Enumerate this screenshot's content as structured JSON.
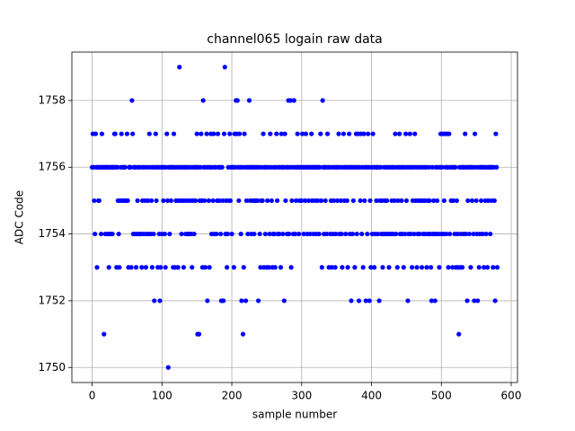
{
  "chart_data": {
    "type": "scatter",
    "title": "channel065 logain raw data",
    "x_label": "sample number",
    "y_label": "ADC Code",
    "xlim": [
      -29,
      609
    ],
    "ylim": [
      1749.55,
      1759.45
    ],
    "xticks": [
      0,
      100,
      200,
      300,
      400,
      500,
      600
    ],
    "yticks": [
      1750,
      1752,
      1754,
      1756,
      1758
    ],
    "grid": true,
    "series": [
      {
        "color": "#0000ff",
        "x": [
          0,
          1,
          2,
          3,
          4,
          5,
          6,
          7,
          8,
          9,
          10,
          11,
          12,
          13,
          14,
          15,
          16,
          17,
          18,
          19,
          20,
          21,
          22,
          23,
          24,
          25,
          26,
          27,
          28,
          29,
          30,
          31,
          32,
          33,
          34,
          35,
          36,
          37,
          38,
          39,
          40,
          41,
          42,
          43,
          44,
          45,
          46,
          47,
          48,
          49,
          50,
          51,
          52,
          53,
          54,
          55,
          56,
          57,
          58,
          59,
          60,
          61,
          62,
          63,
          64,
          65,
          66,
          67,
          68,
          69,
          70,
          71,
          72,
          73,
          74,
          75,
          76,
          77,
          78,
          79,
          80,
          81,
          82,
          83,
          84,
          85,
          86,
          87,
          88,
          89,
          90,
          91,
          92,
          93,
          94,
          95,
          96,
          97,
          98,
          99,
          100,
          101,
          102,
          103,
          104,
          105,
          106,
          107,
          108,
          109,
          110,
          111,
          112,
          113,
          114,
          115,
          116,
          117,
          118,
          119,
          120,
          121,
          122,
          123,
          124,
          125,
          126,
          127,
          128,
          129,
          130,
          131,
          132,
          133,
          134,
          135,
          136,
          137,
          138,
          139,
          140,
          141,
          142,
          143,
          144,
          145,
          146,
          147,
          148,
          149,
          150,
          151,
          152,
          153,
          154,
          155,
          156,
          157,
          158,
          159,
          160,
          161,
          162,
          163,
          164,
          165,
          166,
          167,
          168,
          169,
          170,
          171,
          172,
          173,
          174,
          175,
          176,
          177,
          178,
          179,
          180,
          181,
          182,
          183,
          184,
          185,
          186,
          187,
          188,
          189,
          190,
          191,
          192,
          193,
          194,
          195,
          196,
          197,
          198,
          199,
          200,
          201,
          202,
          203,
          204,
          205,
          206,
          207,
          208,
          209,
          210,
          211,
          212,
          213,
          214,
          215,
          216,
          217,
          218,
          219,
          220,
          221,
          222,
          223,
          224,
          225,
          226,
          227,
          228,
          229,
          230,
          231,
          232,
          233,
          234,
          235,
          236,
          237,
          238,
          239,
          240,
          241,
          242,
          243,
          244,
          245,
          246,
          247,
          248,
          249,
          250,
          251,
          252,
          253,
          254,
          255,
          256,
          257,
          258,
          259,
          260,
          261,
          262,
          263,
          264,
          265,
          266,
          267,
          268,
          269,
          270,
          271,
          272,
          273,
          274,
          275,
          276,
          277,
          278,
          279,
          280,
          281,
          282,
          283,
          284,
          285,
          286,
          287,
          288,
          289,
          290,
          291,
          292,
          293,
          294,
          295,
          296,
          297,
          298,
          299,
          300,
          301,
          302,
          303,
          304,
          305,
          306,
          307,
          308,
          309,
          310,
          311,
          312,
          313,
          314,
          315,
          316,
          317,
          318,
          319,
          320,
          321,
          322,
          323,
          324,
          325,
          326,
          327,
          328,
          329,
          330,
          331,
          332,
          333,
          334,
          335,
          336,
          337,
          338,
          339,
          340,
          341,
          342,
          343,
          344,
          345,
          346,
          347,
          348,
          349,
          350,
          351,
          352,
          353,
          354,
          355,
          356,
          357,
          358,
          359,
          360,
          361,
          362,
          363,
          364,
          365,
          366,
          367,
          368,
          369,
          370,
          371,
          372,
          373,
          374,
          375,
          376,
          377,
          378,
          379,
          380,
          381,
          382,
          383,
          384,
          385,
          386,
          387,
          388,
          389,
          390,
          391,
          392,
          393,
          394,
          395,
          396,
          397,
          398,
          399,
          400,
          401,
          402,
          403,
          404,
          405,
          406,
          407,
          408,
          409,
          410,
          411,
          412,
          413,
          414,
          415,
          416,
          417,
          418,
          419,
          420,
          421,
          422,
          423,
          424,
          425,
          426,
          427,
          428,
          429,
          430,
          431,
          432,
          433,
          434,
          435,
          436,
          437,
          438,
          439,
          440,
          441,
          442,
          443,
          444,
          445,
          446,
          447,
          448,
          449,
          450,
          451,
          452,
          453,
          454,
          455,
          456,
          457,
          458,
          459,
          460,
          461,
          462,
          463,
          464,
          465,
          466,
          467,
          468,
          469,
          470,
          471,
          472,
          473,
          474,
          475,
          476,
          477,
          478,
          479,
          480,
          481,
          482,
          483,
          484,
          485,
          486,
          487,
          488,
          489,
          490,
          491,
          492,
          493,
          494,
          495,
          496,
          497,
          498,
          499,
          500,
          501,
          502,
          503,
          504,
          505,
          506,
          507,
          508,
          509,
          510,
          511,
          512,
          513,
          514,
          515,
          516,
          517,
          518,
          519,
          520,
          521,
          522,
          523,
          524,
          525,
          526,
          527,
          528,
          529,
          530,
          531,
          532,
          533,
          534,
          535,
          536,
          537,
          538,
          539,
          540,
          541,
          542,
          543,
          544,
          545,
          546,
          547,
          548,
          549,
          550,
          551,
          552,
          553,
          554,
          555,
          556,
          557,
          558,
          559,
          560,
          561,
          562,
          563,
          564,
          565,
          566,
          567,
          568,
          569,
          570,
          571,
          572,
          573,
          574,
          575,
          576,
          577,
          578,
          579,
          580
        ],
        "values": [
          1756,
          1757,
          1756,
          1755,
          1754,
          1757,
          1756,
          1753,
          1756,
          1755,
          1755,
          1756,
          1756,
          1754,
          1757,
          1756,
          1756,
          1751,
          1756,
          1754,
          1756,
          1756,
          1754,
          1756,
          1753,
          1754,
          1756,
          1754,
          1756,
          1754,
          1756,
          1756,
          1757,
          1757,
          1756,
          1753,
          1756,
          1755,
          1754,
          1753,
          1755,
          1756,
          1757,
          1755,
          1756,
          1755,
          1756,
          1756,
          1755,
          1755,
          1757,
          1755,
          1753,
          1756,
          1756,
          1756,
          1753,
          1758,
          1757,
          1754,
          1756,
          1754,
          1756,
          1753,
          1754,
          1755,
          1756,
          1754,
          1754,
          1756,
          1754,
          1753,
          1755,
          1756,
          1754,
          1756,
          1755,
          1753,
          1754,
          1756,
          1755,
          1754,
          1757,
          1756,
          1754,
          1755,
          1753,
          1756,
          1754,
          1752,
          1756,
          1757,
          1755,
          1756,
          1753,
          1756,
          1754,
          1752,
          1753,
          1756,
          1754,
          1756,
          1755,
          1756,
          1754,
          1753,
          1756,
          1757,
          1755,
          1750,
          1756,
          1754,
          1756,
          1755,
          1756,
          1756,
          1753,
          1757,
          1756,
          1753,
          1755,
          1756,
          1755,
          1753,
          1756,
          1759,
          1755,
          1756,
          1754,
          1755,
          1756,
          1753,
          1755,
          1756,
          1754,
          1756,
          1755,
          1754,
          1756,
          1754,
          1755,
          1756,
          1754,
          1753,
          1755,
          1756,
          1754,
          1756,
          1755,
          1756,
          1757,
          1751,
          1756,
          1751,
          1755,
          1756,
          1757,
          1755,
          1753,
          1758,
          1756,
          1755,
          1753,
          1756,
          1757,
          1752,
          1756,
          1755,
          1753,
          1756,
          1757,
          1754,
          1756,
          1755,
          1757,
          1754,
          1756,
          1756,
          1754,
          1755,
          1757,
          1756,
          1755,
          1756,
          1754,
          1752,
          1756,
          1755,
          1752,
          1757,
          1759,
          1754,
          1755,
          1753,
          1754,
          1756,
          1755,
          1757,
          1755,
          1756,
          1754,
          1756,
          1756,
          1753,
          1757,
          1756,
          1758,
          1757,
          1758,
          1756,
          1755,
          1757,
          1756,
          1754,
          1752,
          1756,
          1751,
          1753,
          1757,
          1756,
          1752,
          1755,
          1756,
          1754,
          1756,
          1758,
          1755,
          1756,
          1754,
          1756,
          1755,
          1756,
          1754,
          1755,
          1756,
          1755,
          1756,
          1755,
          1752,
          1756,
          1754,
          1753,
          1755,
          1756,
          1755,
          1757,
          1753,
          1756,
          1754,
          1756,
          1753,
          1755,
          1756,
          1753,
          1754,
          1757,
          1756,
          1755,
          1753,
          1754,
          1756,
          1754,
          1753,
          1756,
          1757,
          1755,
          1754,
          1756,
          1754,
          1756,
          1753,
          1757,
          1756,
          1754,
          1756,
          1752,
          1757,
          1755,
          1756,
          1754,
          1756,
          1758,
          1754,
          1756,
          1758,
          1753,
          1755,
          1756,
          1754,
          1758,
          1756,
          1754,
          1755,
          1756,
          1757,
          1756,
          1754,
          1755,
          1756,
          1756,
          1755,
          1757,
          1756,
          1754,
          1756,
          1755,
          1757,
          1756,
          1754,
          1756,
          1755,
          1756,
          1754,
          1756,
          1757,
          1755,
          1756,
          1754,
          1756,
          1755,
          1756,
          1754,
          1756,
          1755,
          1756,
          1754,
          1756,
          1757,
          1755,
          1753,
          1758,
          1756,
          1754,
          1756,
          1755,
          1756,
          1754,
          1757,
          1756,
          1753,
          1756,
          1754,
          1755,
          1753,
          1756,
          1754,
          1755,
          1756,
          1753,
          1754,
          1756,
          1755,
          1756,
          1757,
          1754,
          1756,
          1755,
          1754,
          1753,
          1756,
          1757,
          1755,
          1756,
          1754,
          1756,
          1755,
          1753,
          1756,
          1757,
          1754,
          1756,
          1752,
          1756,
          1754,
          1755,
          1756,
          1753,
          1756,
          1757,
          1754,
          1756,
          1757,
          1752,
          1756,
          1755,
          1757,
          1754,
          1756,
          1753,
          1757,
          1755,
          1756,
          1752,
          1756,
          1754,
          1757,
          1756,
          1752,
          1755,
          1753,
          1756,
          1754,
          1757,
          1756,
          1753,
          1754,
          1756,
          1755,
          1756,
          1754,
          1756,
          1752,
          1755,
          1756,
          1754,
          1755,
          1753,
          1754,
          1756,
          1755,
          1754,
          1756,
          1755,
          1754,
          1756,
          1753,
          1754,
          1756,
          1754,
          1755,
          1756,
          1754,
          1756,
          1755,
          1757,
          1754,
          1756,
          1753,
          1755,
          1756,
          1757,
          1754,
          1756,
          1755,
          1754,
          1756,
          1753,
          1756,
          1754,
          1757,
          1755,
          1756,
          1752,
          1754,
          1756,
          1757,
          1754,
          1756,
          1753,
          1755,
          1756,
          1754,
          1757,
          1755,
          1756,
          1753,
          1754,
          1755,
          1756,
          1754,
          1755,
          1756,
          1753,
          1755,
          1754,
          1756,
          1755,
          1754,
          1756,
          1753,
          1755,
          1754,
          1756,
          1755,
          1754,
          1753,
          1752,
          1756,
          1754,
          1755,
          1754,
          1752,
          1756,
          1754,
          1755,
          1756,
          1754,
          1753,
          1756,
          1757,
          1754,
          1756,
          1757,
          1754,
          1755,
          1757,
          1756,
          1754,
          1757,
          1756,
          1753,
          1757,
          1754,
          1756,
          1755,
          1756,
          1753,
          1755,
          1756,
          1754,
          1756,
          1753,
          1755,
          1754,
          1753,
          1751,
          1756,
          1753,
          1754,
          1756,
          1753,
          1756,
          1754,
          1756,
          1757,
          1754,
          1756,
          1752,
          1755,
          1756,
          1754,
          1756,
          1753,
          1756,
          1755,
          1756,
          1754,
          1752,
          1757,
          1756,
          1755,
          1754,
          1752,
          1756,
          1753,
          1754,
          1756,
          1755,
          1756,
          1754,
          1756,
          1753,
          1756,
          1755,
          1754,
          1756,
          1753,
          1755,
          1756,
          1756,
          1754,
          1756,
          1755,
          1756,
          1753,
          1756,
          1755,
          1752,
          1757,
          1756,
          1753
        ]
      }
    ]
  }
}
